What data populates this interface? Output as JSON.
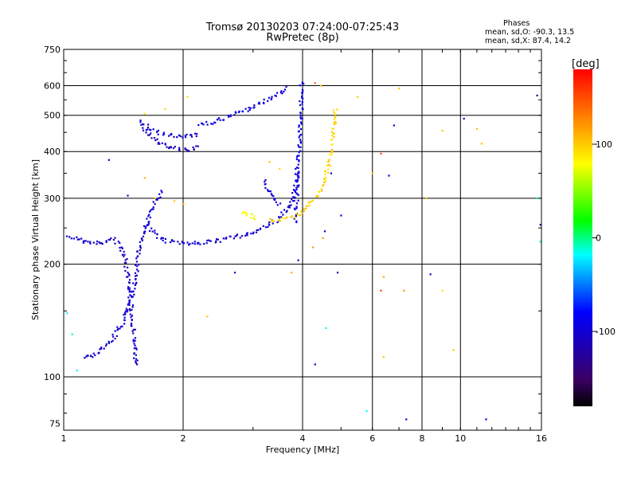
{
  "chart_data": {
    "type": "scatter",
    "title": "Tromsø 20130203 07:24:00-07:25:43",
    "subtitle": "RwPretec (8p)",
    "xlabel": "Frequency [MHz]",
    "ylabel": "Stationary phase Virtual Height [km]",
    "x_scale": "log",
    "y_scale": "log",
    "xlim": [
      1,
      16
    ],
    "ylim": [
      72,
      750
    ],
    "x_ticks": [
      1,
      2,
      4,
      6,
      8,
      10,
      16
    ],
    "y_ticks": [
      75,
      100,
      200,
      300,
      400,
      500,
      600,
      750
    ],
    "grid": true,
    "color_variable": "phase",
    "colorbar": {
      "label": "[deg]",
      "range": [
        -180,
        180
      ],
      "ticks": [
        -100,
        0,
        100
      ],
      "colors": [
        "#000000",
        "#3b0066",
        "#0000ff",
        "#00ffff",
        "#00ff00",
        "#ffff00",
        "#ff0000"
      ]
    },
    "stats": {
      "heading": "Phases",
      "o_mode": "mean, sd,O: -90.3, 13.5",
      "x_mode": "mean, sd,X:  87.4, 14.2"
    },
    "traces": [
      {
        "mode": "O",
        "phase": -105,
        "points": [
          [
            1.03,
            240
          ],
          [
            1.05,
            236
          ],
          [
            1.08,
            234
          ],
          [
            1.1,
            232
          ],
          [
            1.14,
            229
          ],
          [
            1.19,
            228
          ],
          [
            1.24,
            227
          ],
          [
            1.28,
            231
          ],
          [
            1.32,
            234
          ],
          [
            1.35,
            232
          ],
          [
            1.38,
            226
          ],
          [
            1.4,
            220
          ],
          [
            1.42,
            212
          ],
          [
            1.43,
            205
          ],
          [
            1.44,
            196
          ],
          [
            1.45,
            186
          ],
          [
            1.46,
            176
          ],
          [
            1.47,
            164
          ],
          [
            1.48,
            152
          ],
          [
            1.49,
            140
          ],
          [
            1.5,
            128
          ],
          [
            1.51,
            118
          ],
          [
            1.52,
            110
          ],
          [
            1.53,
            106
          ]
        ]
      },
      {
        "mode": "O",
        "phase": -100,
        "points": [
          [
            1.12,
            112
          ],
          [
            1.16,
            113
          ],
          [
            1.2,
            115
          ],
          [
            1.25,
            119
          ],
          [
            1.3,
            124
          ],
          [
            1.35,
            130
          ],
          [
            1.4,
            138
          ],
          [
            1.44,
            148
          ],
          [
            1.47,
            160
          ],
          [
            1.5,
            172
          ],
          [
            1.52,
            186
          ],
          [
            1.53,
            198
          ],
          [
            1.54,
            210
          ],
          [
            1.55,
            222
          ],
          [
            1.57,
            236
          ],
          [
            1.6,
            250
          ],
          [
            1.63,
            263
          ],
          [
            1.66,
            278
          ],
          [
            1.7,
            292
          ],
          [
            1.74,
            305
          ],
          [
            1.78,
            318
          ]
        ]
      },
      {
        "mode": "O",
        "phase": -100,
        "points": [
          [
            1.63,
            258
          ],
          [
            1.66,
            248
          ],
          [
            1.7,
            240
          ],
          [
            1.76,
            234
          ],
          [
            1.84,
            230
          ],
          [
            1.95,
            228
          ],
          [
            2.1,
            228
          ],
          [
            2.3,
            229
          ],
          [
            2.5,
            232
          ],
          [
            2.7,
            236
          ],
          [
            2.9,
            241
          ],
          [
            3.1,
            247
          ],
          [
            3.3,
            255
          ],
          [
            3.45,
            263
          ],
          [
            3.6,
            274
          ],
          [
            3.72,
            288
          ],
          [
            3.8,
            305
          ],
          [
            3.85,
            330
          ],
          [
            3.88,
            360
          ]
        ]
      },
      {
        "mode": "O",
        "phase": -95,
        "points": [
          [
            3.82,
            260
          ],
          [
            3.86,
            300
          ],
          [
            3.89,
            345
          ],
          [
            3.91,
            390
          ],
          [
            3.93,
            430
          ],
          [
            3.95,
            470
          ],
          [
            3.96,
            510
          ],
          [
            3.97,
            550
          ],
          [
            3.98,
            590
          ],
          [
            3.99,
            620
          ]
        ]
      },
      {
        "mode": "O",
        "phase": -110,
        "points": [
          [
            1.58,
            460
          ],
          [
            1.65,
            440
          ],
          [
            1.72,
            425
          ],
          [
            1.8,
            415
          ],
          [
            1.9,
            408
          ],
          [
            2.0,
            405
          ],
          [
            2.1,
            406
          ],
          [
            2.2,
            412
          ]
        ]
      },
      {
        "mode": "O",
        "phase": -100,
        "points": [
          [
            1.55,
            480
          ],
          [
            1.6,
            470
          ],
          [
            1.7,
            455
          ],
          [
            1.8,
            445
          ],
          [
            1.9,
            440
          ],
          [
            2.0,
            438
          ],
          [
            2.1,
            440
          ],
          [
            2.2,
            446
          ]
        ]
      },
      {
        "mode": "O",
        "phase": -95,
        "points": [
          [
            2.2,
            470
          ],
          [
            2.4,
            482
          ],
          [
            2.6,
            495
          ],
          [
            2.8,
            510
          ],
          [
            3.0,
            527
          ],
          [
            3.2,
            545
          ],
          [
            3.4,
            563
          ],
          [
            3.55,
            580
          ],
          [
            3.65,
            595
          ]
        ]
      },
      {
        "mode": "X",
        "phase": 95,
        "points": [
          [
            3.3,
            262
          ],
          [
            3.45,
            263
          ],
          [
            3.6,
            265
          ],
          [
            3.75,
            268
          ],
          [
            3.9,
            273
          ],
          [
            4.0,
            278
          ],
          [
            4.15,
            287
          ],
          [
            4.3,
            300
          ],
          [
            4.45,
            318
          ],
          [
            4.55,
            340
          ],
          [
            4.65,
            368
          ],
          [
            4.72,
            400
          ],
          [
            4.77,
            435
          ],
          [
            4.8,
            470
          ],
          [
            4.82,
            505
          ],
          [
            4.83,
            530
          ]
        ]
      },
      {
        "mode": "X",
        "phase": 75,
        "points": [
          [
            2.8,
            276
          ],
          [
            2.9,
            272
          ],
          [
            3.0,
            268
          ],
          [
            3.1,
            266
          ]
        ]
      },
      {
        "mode": "O",
        "phase": -95,
        "points": [
          [
            3.2,
            336
          ],
          [
            3.3,
            310
          ],
          [
            3.4,
            298
          ],
          [
            3.5,
            287
          ]
        ]
      }
    ],
    "scatter_points": [
      {
        "x": 1.6,
        "y": 340,
        "phase": 110
      },
      {
        "x": 1.7,
        "y": 300,
        "phase": 105
      },
      {
        "x": 1.9,
        "y": 295,
        "phase": 100
      },
      {
        "x": 2.0,
        "y": 290,
        "phase": 115
      },
      {
        "x": 1.8,
        "y": 520,
        "phase": 95
      },
      {
        "x": 2.05,
        "y": 560,
        "phase": 90
      },
      {
        "x": 2.3,
        "y": 145,
        "phase": 100
      },
      {
        "x": 2.7,
        "y": 190,
        "phase": -105
      },
      {
        "x": 3.3,
        "y": 375,
        "phase": 105
      },
      {
        "x": 3.5,
        "y": 360,
        "phase": 95
      },
      {
        "x": 3.75,
        "y": 190,
        "phase": 110
      },
      {
        "x": 3.9,
        "y": 205,
        "phase": -100
      },
      {
        "x": 4.25,
        "y": 222,
        "phase": 120
      },
      {
        "x": 4.3,
        "y": 108,
        "phase": -110
      },
      {
        "x": 4.3,
        "y": 610,
        "phase": 140
      },
      {
        "x": 4.45,
        "y": 600,
        "phase": 100
      },
      {
        "x": 4.5,
        "y": 235,
        "phase": 120
      },
      {
        "x": 4.55,
        "y": 245,
        "phase": -105
      },
      {
        "x": 4.58,
        "y": 135,
        "phase": -20
      },
      {
        "x": 4.72,
        "y": 350,
        "phase": -110
      },
      {
        "x": 4.9,
        "y": 190,
        "phase": -110
      },
      {
        "x": 5.0,
        "y": 270,
        "phase": -105
      },
      {
        "x": 5.5,
        "y": 560,
        "phase": 100
      },
      {
        "x": 5.8,
        "y": 81,
        "phase": -20
      },
      {
        "x": 6.0,
        "y": 350,
        "phase": 100
      },
      {
        "x": 6.3,
        "y": 395,
        "phase": 150
      },
      {
        "x": 6.3,
        "y": 170,
        "phase": 150
      },
      {
        "x": 6.4,
        "y": 185,
        "phase": 110
      },
      {
        "x": 6.4,
        "y": 113,
        "phase": 100
      },
      {
        "x": 6.6,
        "y": 345,
        "phase": -100
      },
      {
        "x": 6.8,
        "y": 470,
        "phase": -110
      },
      {
        "x": 7.0,
        "y": 590,
        "phase": 100
      },
      {
        "x": 7.2,
        "y": 170,
        "phase": 120
      },
      {
        "x": 7.3,
        "y": 77,
        "phase": -100
      },
      {
        "x": 8.2,
        "y": 300,
        "phase": 110
      },
      {
        "x": 8.4,
        "y": 188,
        "phase": -110
      },
      {
        "x": 9.0,
        "y": 455,
        "phase": 100
      },
      {
        "x": 9.0,
        "y": 170,
        "phase": 90
      },
      {
        "x": 9.6,
        "y": 118,
        "phase": 100
      },
      {
        "x": 10.2,
        "y": 490,
        "phase": -110
      },
      {
        "x": 11.0,
        "y": 460,
        "phase": 105
      },
      {
        "x": 11.3,
        "y": 420,
        "phase": 105
      },
      {
        "x": 11.6,
        "y": 77,
        "phase": -100
      },
      {
        "x": 15.6,
        "y": 300,
        "phase": 0
      },
      {
        "x": 15.6,
        "y": 565,
        "phase": -110
      },
      {
        "x": 15.9,
        "y": 255,
        "phase": -100
      },
      {
        "x": 15.9,
        "y": 230,
        "phase": -10
      },
      {
        "x": 1.02,
        "y": 148,
        "phase": -20
      },
      {
        "x": 1.05,
        "y": 130,
        "phase": -10
      },
      {
        "x": 1.08,
        "y": 104,
        "phase": -20
      },
      {
        "x": 1.6,
        "y": 505,
        "phase": 90
      },
      {
        "x": 1.3,
        "y": 380,
        "phase": -110
      },
      {
        "x": 1.45,
        "y": 305,
        "phase": -110
      }
    ]
  }
}
